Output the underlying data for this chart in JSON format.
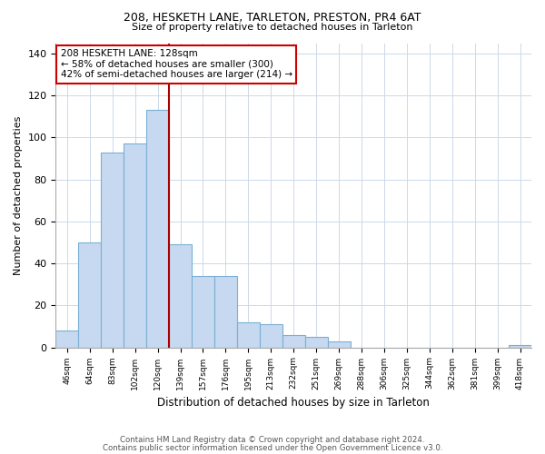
{
  "title1": "208, HESKETH LANE, TARLETON, PRESTON, PR4 6AT",
  "title2": "Size of property relative to detached houses in Tarleton",
  "xlabel": "Distribution of detached houses by size in Tarleton",
  "ylabel": "Number of detached properties",
  "bar_labels": [
    "46sqm",
    "64sqm",
    "83sqm",
    "102sqm",
    "120sqm",
    "139sqm",
    "157sqm",
    "176sqm",
    "195sqm",
    "213sqm",
    "232sqm",
    "251sqm",
    "269sqm",
    "288sqm",
    "306sqm",
    "325sqm",
    "344sqm",
    "362sqm",
    "381sqm",
    "399sqm",
    "418sqm"
  ],
  "bar_values": [
    8,
    50,
    93,
    97,
    113,
    49,
    34,
    34,
    12,
    11,
    6,
    5,
    3,
    0,
    0,
    0,
    0,
    0,
    0,
    0,
    1
  ],
  "bar_color": "#c6d9f0",
  "bar_edge_color": "#7bb0d4",
  "highlight_line_color": "#aa0000",
  "annotation_line1": "208 HESKETH LANE: 128sqm",
  "annotation_line2": "← 58% of detached houses are smaller (300)",
  "annotation_line3": "42% of semi-detached houses are larger (214) →",
  "annotation_box_edge": "#cc0000",
  "vline_bar_index": 4,
  "ylim": [
    0,
    145
  ],
  "yticks": [
    0,
    20,
    40,
    60,
    80,
    100,
    120,
    140
  ],
  "footnote1": "Contains HM Land Registry data © Crown copyright and database right 2024.",
  "footnote2": "Contains public sector information licensed under the Open Government Licence v3.0.",
  "bg_color": "#ffffff",
  "grid_color": "#ccd9e8"
}
